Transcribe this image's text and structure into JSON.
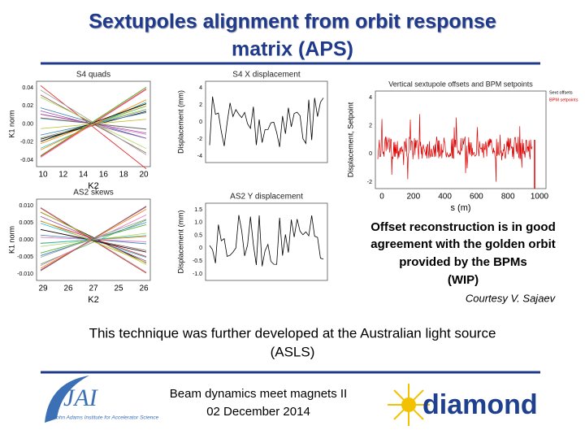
{
  "title": [
    "Sextupoles alignment from orbit response",
    "matrix (APS)"
  ],
  "plots": [
    {
      "title": "S4 quads",
      "x_label": "K2",
      "y_label": "K1 norm",
      "xticks": [
        "10",
        "12",
        "14",
        "16",
        "18",
        "20"
      ],
      "yticks": [
        "0.04",
        "0.02",
        "0.00",
        "-0.02",
        "-0.04"
      ]
    },
    {
      "title": "S4 X displacement",
      "x_label": "",
      "y_label": "Displacement (mm)",
      "xticks": [],
      "yticks": [
        "4",
        "2",
        "0",
        "-2",
        "-4"
      ]
    },
    {
      "title": "Vertical sextupole offsets and BPM setpoints",
      "x_label": "s (m)",
      "y_label": "Displacement, Setpoint",
      "xticks": [
        "0",
        "200",
        "400",
        "600",
        "800",
        "1000"
      ],
      "yticks": [
        "4",
        "2",
        "0",
        "-2"
      ],
      "legend": [
        "Sext offsets",
        "BPM setpoints"
      ]
    },
    {
      "title": "AS2 skews",
      "x_label": "K2",
      "y_label": "K1 norm",
      "xticks": [
        "29",
        "26",
        "27",
        "25",
        "26"
      ],
      "yticks": [
        "0.010",
        "0.005",
        "0.000",
        "-0.005",
        "-0.010"
      ]
    },
    {
      "title": "AS2 Y displacement",
      "x_label": "",
      "y_label": "Displacement (mm)",
      "xticks": [],
      "yticks": [
        "1.5",
        "1.0",
        "0.5",
        "0",
        "-0.5",
        "-1.0"
      ]
    }
  ],
  "caption": [
    "Offset reconstruction is in good",
    "agreement with the golden orbit",
    "provided by the BPMs",
    "(WIP)"
  ],
  "courtesy": "Courtesy V. Sajaev",
  "body": [
    "This technique was further developed at the Australian light source",
    "(ASLS)"
  ],
  "footer": [
    "Beam dynamics meet magnets II",
    "02 December 2014"
  ],
  "logos": {
    "jai": "John Adams Institute for Accelerator Science",
    "diamond": "diamond"
  }
}
